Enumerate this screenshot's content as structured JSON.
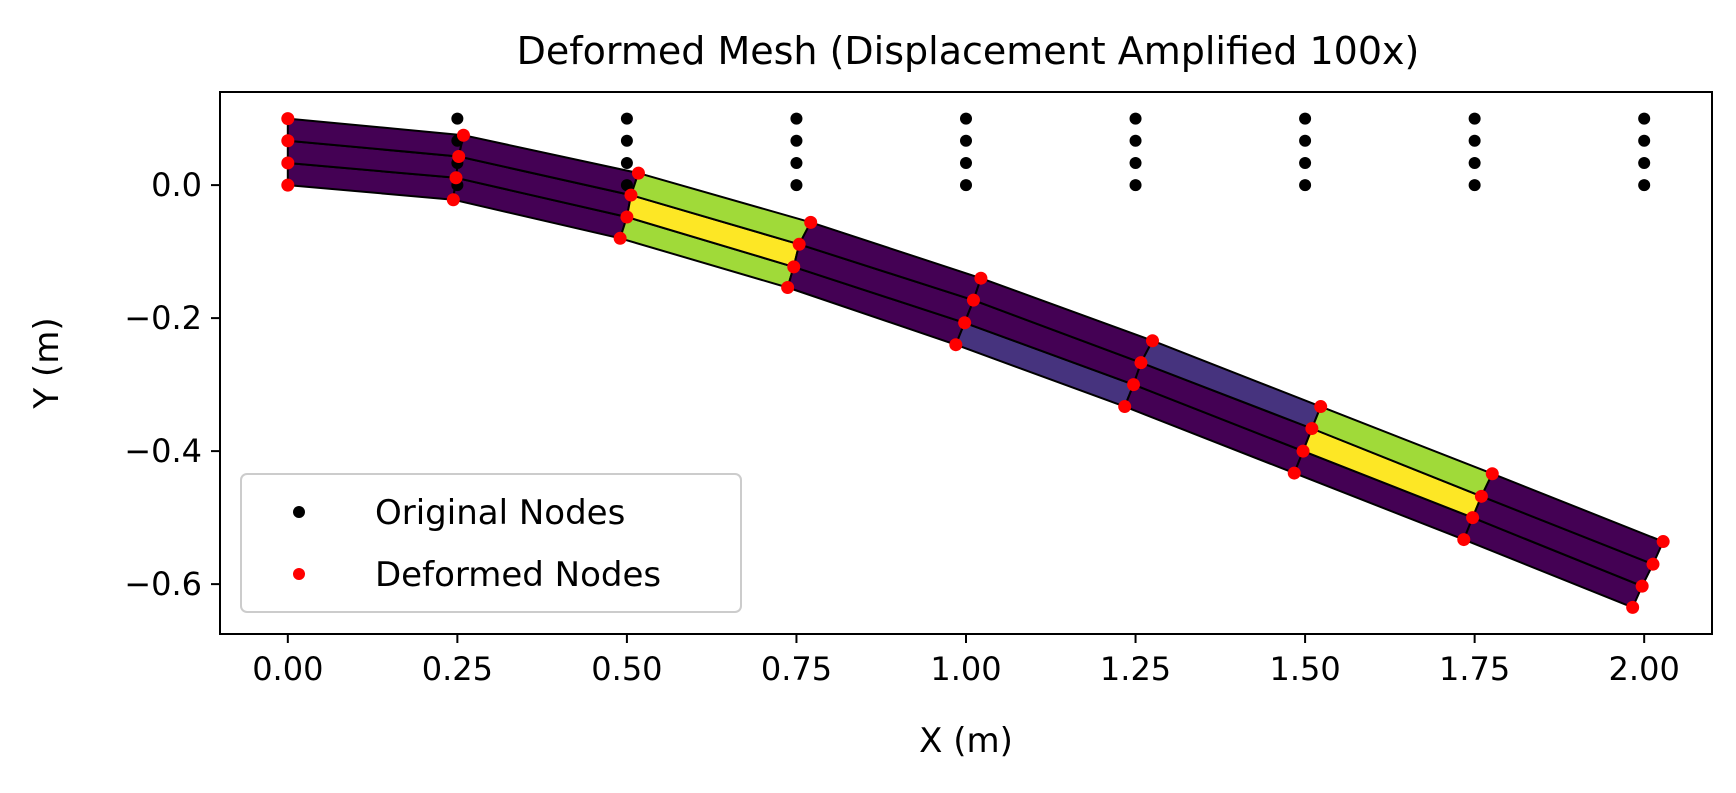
{
  "chart_data": {
    "type": "scatter",
    "title": "Deformed Mesh (Displacement Amplified 100x)",
    "xlabel": "X (m)",
    "ylabel": "Y (m)",
    "xlim": [
      -0.1,
      2.1
    ],
    "ylim": [
      -0.675,
      0.14
    ],
    "x_ticks": [
      "0.00",
      "0.25",
      "0.50",
      "0.75",
      "1.00",
      "1.25",
      "1.50",
      "1.75",
      "2.00"
    ],
    "x_tick_values": [
      0,
      0.25,
      0.5,
      0.75,
      1.0,
      1.25,
      1.5,
      1.75,
      2.0
    ],
    "y_ticks": [
      "0.0",
      "−0.2",
      "−0.4",
      "−0.6"
    ],
    "y_tick_values": [
      0,
      -0.2,
      -0.4,
      -0.6
    ],
    "grid": false,
    "legend_position": "lower-left",
    "colors": {
      "original": "#000000",
      "deformed": "#ff0000",
      "element_low": "#440154",
      "element_midlow": "#46337e",
      "element_midhigh": "#a0da39",
      "element_high": "#fde725"
    },
    "series": [
      {
        "name": "Original Nodes",
        "marker": "dot",
        "color": "#000000",
        "points": [
          [
            0.0,
            0.0
          ],
          [
            0.0,
            0.0333
          ],
          [
            0.0,
            0.0667
          ],
          [
            0.0,
            0.1
          ],
          [
            0.25,
            0.0
          ],
          [
            0.25,
            0.0333
          ],
          [
            0.25,
            0.0667
          ],
          [
            0.25,
            0.1
          ],
          [
            0.5,
            0.0
          ],
          [
            0.5,
            0.0333
          ],
          [
            0.5,
            0.0667
          ],
          [
            0.5,
            0.1
          ],
          [
            0.75,
            0.0
          ],
          [
            0.75,
            0.0333
          ],
          [
            0.75,
            0.0667
          ],
          [
            0.75,
            0.1
          ],
          [
            1.0,
            0.0
          ],
          [
            1.0,
            0.0333
          ],
          [
            1.0,
            0.0667
          ],
          [
            1.0,
            0.1
          ],
          [
            1.25,
            0.0
          ],
          [
            1.25,
            0.0333
          ],
          [
            1.25,
            0.0667
          ],
          [
            1.25,
            0.1
          ],
          [
            1.5,
            0.0
          ],
          [
            1.5,
            0.0333
          ],
          [
            1.5,
            0.0667
          ],
          [
            1.5,
            0.1
          ],
          [
            1.75,
            0.0
          ],
          [
            1.75,
            0.0333
          ],
          [
            1.75,
            0.0667
          ],
          [
            1.75,
            0.1
          ],
          [
            2.0,
            0.0
          ],
          [
            2.0,
            0.0333
          ],
          [
            2.0,
            0.0667
          ],
          [
            2.0,
            0.1
          ]
        ]
      },
      {
        "name": "Deformed Nodes",
        "marker": "dot",
        "color": "#ff0000",
        "columns": [
          [
            [
              0.0,
              0.0
            ],
            [
              0.0,
              0.0333
            ],
            [
              0.0,
              0.0667
            ],
            [
              0.0,
              0.1
            ]
          ],
          [
            [
              0.244,
              -0.022
            ],
            [
              0.248,
              0.011
            ],
            [
              0.252,
              0.043
            ],
            [
              0.259,
              0.075
            ]
          ],
          [
            [
              0.49,
              -0.08
            ],
            [
              0.5,
              -0.048
            ],
            [
              0.506,
              -0.015
            ],
            [
              0.517,
              0.018
            ]
          ],
          [
            [
              0.737,
              -0.154
            ],
            [
              0.746,
              -0.123
            ],
            [
              0.754,
              -0.089
            ],
            [
              0.771,
              -0.056
            ]
          ],
          [
            [
              0.985,
              -0.24
            ],
            [
              0.998,
              -0.207
            ],
            [
              1.011,
              -0.173
            ],
            [
              1.022,
              -0.14
            ]
          ],
          [
            [
              1.234,
              -0.333
            ],
            [
              1.247,
              -0.3
            ],
            [
              1.258,
              -0.267
            ],
            [
              1.275,
              -0.234
            ]
          ],
          [
            [
              1.484,
              -0.433
            ],
            [
              1.497,
              -0.4
            ],
            [
              1.51,
              -0.366
            ],
            [
              1.523,
              -0.333
            ]
          ],
          [
            [
              1.734,
              -0.533
            ],
            [
              1.747,
              -0.5
            ],
            [
              1.76,
              -0.468
            ],
            [
              1.776,
              -0.434
            ]
          ],
          [
            [
              1.983,
              -0.635
            ],
            [
              1.997,
              -0.603
            ],
            [
              2.013,
              -0.57
            ],
            [
              2.028,
              -0.536
            ]
          ]
        ]
      }
    ],
    "element_levels": [
      [
        "low",
        "low",
        "midhigh",
        "low",
        "midlow",
        "low",
        "low",
        "low"
      ],
      [
        "low",
        "low",
        "high",
        "low",
        "low",
        "low",
        "high",
        "low"
      ],
      [
        "low",
        "low",
        "midhigh",
        "low",
        "low",
        "midlow",
        "midhigh",
        "low"
      ]
    ]
  }
}
